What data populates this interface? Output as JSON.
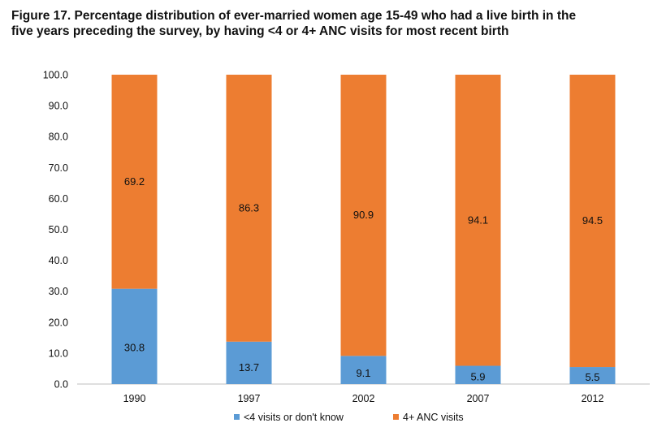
{
  "figure": {
    "title_line1": "Figure 17. Percentage distribution of ever-married women age 15-49 who had a live birth in the",
    "title_line2": "five years preceding the survey, by having <4 or 4+ ANC visits for most recent birth"
  },
  "chart_data": {
    "type": "bar",
    "stacked": true,
    "categories": [
      "1990",
      "1997",
      "2002",
      "2007",
      "2012"
    ],
    "series": [
      {
        "name": "<4 visits or don't know",
        "values": [
          30.8,
          13.7,
          9.1,
          5.9,
          5.5
        ],
        "color": "#5B9BD5"
      },
      {
        "name": "4+ ANC visits",
        "values": [
          69.2,
          86.3,
          90.9,
          94.1,
          94.5
        ],
        "color": "#ED7D31"
      }
    ],
    "ylim": [
      0,
      100
    ],
    "yticks": [
      "0.0",
      "10.0",
      "20.0",
      "30.0",
      "40.0",
      "50.0",
      "60.0",
      "70.0",
      "80.0",
      "90.0",
      "100.0"
    ],
    "grid": false,
    "legend": "bottom",
    "xlabel": "",
    "ylabel": ""
  }
}
